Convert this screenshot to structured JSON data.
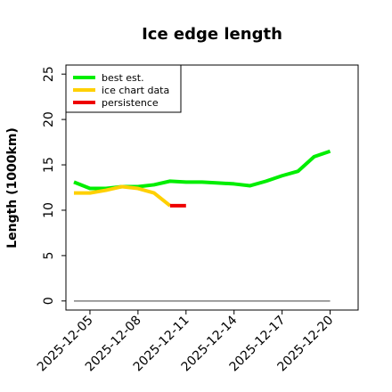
{
  "chart_data": {
    "type": "line",
    "title": "Ice edge length",
    "xlabel": "",
    "ylabel": "Length (1000km)",
    "ylim": [
      -1,
      26
    ],
    "xlim": [
      "2025-12-03T12",
      "2025-12-21T18"
    ],
    "y_ticks": [
      0,
      5,
      10,
      15,
      20,
      25
    ],
    "x_ticks": [
      "2025-12-05",
      "2025-12-08",
      "2025-12-11",
      "2025-12-14",
      "2025-12-17",
      "2025-12-20"
    ],
    "grid": false,
    "legend_position": "top-left",
    "baseline": {
      "x": [
        "2025-12-04",
        "2025-12-20"
      ],
      "y": [
        0,
        0
      ],
      "color": "#808080"
    },
    "series": [
      {
        "name": "best est.",
        "color": "#00ee00",
        "x": [
          "2025-12-04",
          "2025-12-05",
          "2025-12-06",
          "2025-12-07",
          "2025-12-08",
          "2025-12-09",
          "2025-12-10",
          "2025-12-11",
          "2025-12-12",
          "2025-12-13",
          "2025-12-14",
          "2025-12-15",
          "2025-12-16",
          "2025-12-17",
          "2025-12-18",
          "2025-12-19",
          "2025-12-20"
        ],
        "y": [
          13.1,
          12.4,
          12.4,
          12.6,
          12.6,
          12.8,
          13.2,
          13.1,
          13.1,
          13.0,
          12.9,
          12.7,
          13.2,
          13.8,
          14.3,
          15.9,
          16.5
        ]
      },
      {
        "name": "ice chart data",
        "color": "#ffd000",
        "x": [
          "2025-12-04",
          "2025-12-05",
          "2025-12-06",
          "2025-12-07",
          "2025-12-08",
          "2025-12-09",
          "2025-12-10"
        ],
        "y": [
          11.9,
          11.9,
          12.2,
          12.6,
          12.4,
          11.9,
          10.5
        ]
      },
      {
        "name": "persistence",
        "color": "#ee0000",
        "x": [
          "2025-12-10",
          "2025-12-11"
        ],
        "y": [
          10.5,
          10.5
        ]
      }
    ]
  }
}
